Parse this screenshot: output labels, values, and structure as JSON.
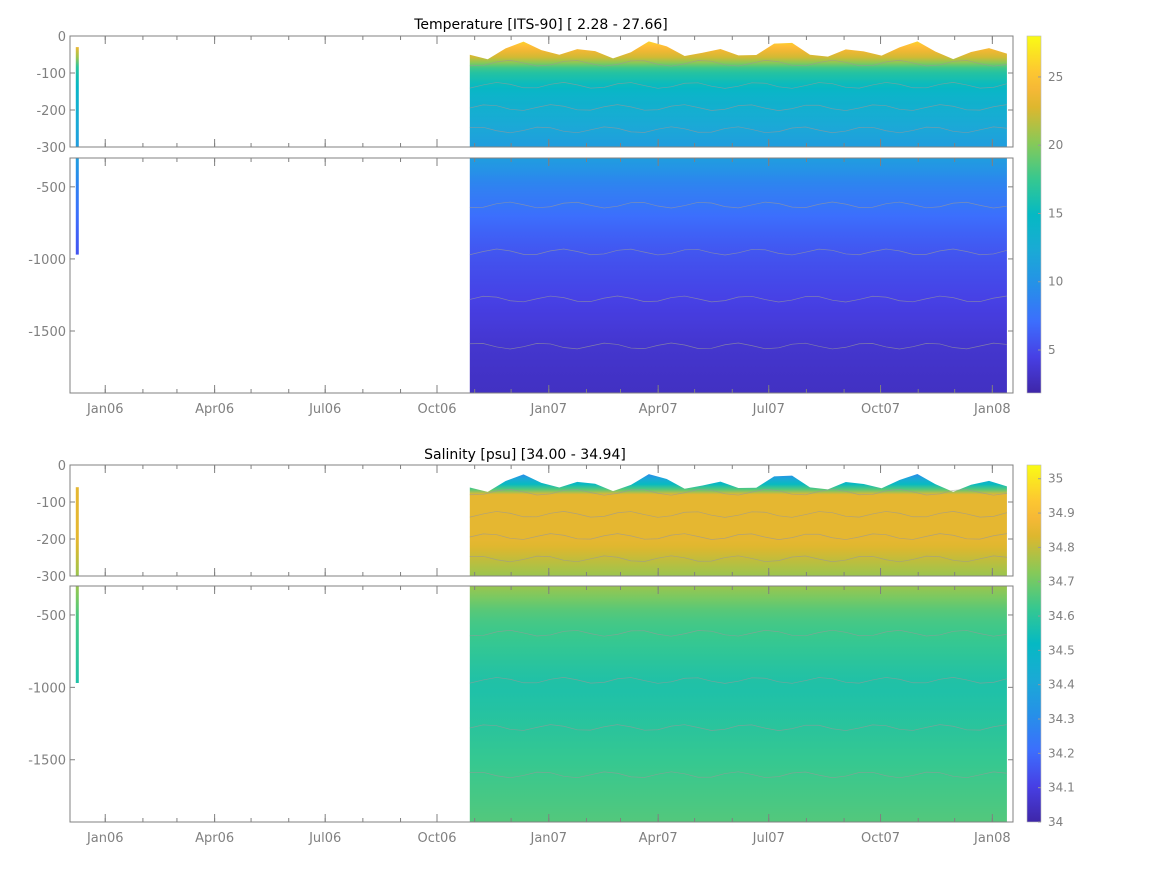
{
  "chart_data": [
    {
      "type": "heatmap",
      "title": "Temperature [ITS-90]   [ 2.28 - 27.66]",
      "xlabel": "",
      "ylabel": "",
      "x_range": [
        "2005-12-03",
        "2008-01-18"
      ],
      "x_ticks": [
        {
          "date": "2006-01-01",
          "label": "Jan06"
        },
        {
          "date": "2006-04-01",
          "label": "Apr06"
        },
        {
          "date": "2006-07-01",
          "label": "Jul06"
        },
        {
          "date": "2006-10-01",
          "label": "Oct06"
        },
        {
          "date": "2007-01-01",
          "label": "Jan07"
        },
        {
          "date": "2007-04-01",
          "label": "Apr07"
        },
        {
          "date": "2007-07-01",
          "label": "Jul07"
        },
        {
          "date": "2007-10-01",
          "label": "Oct07"
        },
        {
          "date": "2008-01-01",
          "label": "Jan08"
        }
      ],
      "upper_ylim": [
        -300,
        0
      ],
      "upper_yticks": [
        "0",
        "-100",
        "-200",
        "-300"
      ],
      "lower_ylim": [
        -1930,
        -300
      ],
      "lower_yticks": [
        "-500",
        "-1000",
        "-1500"
      ],
      "colorbar": {
        "clim": [
          1.85,
          28
        ],
        "ticks": [
          "5",
          "10",
          "15",
          "20",
          "25"
        ],
        "colormap": "parula"
      },
      "isolated_cast": {
        "date": "2005-12-09",
        "depth_range": [
          -30,
          -970
        ]
      },
      "section": {
        "date_range": [
          "2006-10-28",
          "2008-01-13"
        ],
        "surface_depth": -40
      },
      "profile": {
        "depth": [
          0,
          -50,
          -80,
          -150,
          -300,
          -500,
          -800,
          -1000,
          -1300,
          -1600,
          -1930
        ],
        "value": [
          26,
          22,
          17,
          14,
          11,
          8.5,
          6.5,
          5.5,
          4.5,
          3.5,
          3
        ]
      }
    },
    {
      "type": "heatmap",
      "title": "Salinity [psu]   [34.00 - 34.94]",
      "xlabel": "",
      "ylabel": "",
      "x_range": [
        "2005-12-03",
        "2008-01-18"
      ],
      "x_ticks": [
        {
          "date": "2006-01-01",
          "label": "Jan06"
        },
        {
          "date": "2006-04-01",
          "label": "Apr06"
        },
        {
          "date": "2006-07-01",
          "label": "Jul06"
        },
        {
          "date": "2006-10-01",
          "label": "Oct06"
        },
        {
          "date": "2007-01-01",
          "label": "Jan07"
        },
        {
          "date": "2007-04-01",
          "label": "Apr07"
        },
        {
          "date": "2007-07-01",
          "label": "Jul07"
        },
        {
          "date": "2007-10-01",
          "label": "Oct07"
        },
        {
          "date": "2008-01-01",
          "label": "Jan08"
        }
      ],
      "upper_ylim": [
        -300,
        0
      ],
      "upper_yticks": [
        "0",
        "-100",
        "-200",
        "-300"
      ],
      "lower_ylim": [
        -1930,
        -300
      ],
      "lower_yticks": [
        "-500",
        "-1000",
        "-1500"
      ],
      "colorbar": {
        "clim": [
          34,
          35.04
        ],
        "ticks": [
          "34",
          "34.1",
          "34.2",
          "34.3",
          "34.4",
          "34.5",
          "34.6",
          "34.7",
          "34.8",
          "34.9",
          "35"
        ],
        "colormap": "parula"
      },
      "isolated_cast": {
        "date": "2005-12-09",
        "depth_range": [
          -60,
          -970
        ]
      },
      "section": {
        "date_range": [
          "2006-10-28",
          "2008-01-13"
        ],
        "surface_depth": -50
      },
      "profile": {
        "depth": [
          0,
          -40,
          -60,
          -200,
          -300,
          -500,
          -1000,
          -1300,
          -1600,
          -1930
        ],
        "value": [
          34.3,
          34.6,
          34.85,
          34.85,
          34.75,
          34.65,
          34.57,
          34.6,
          34.63,
          34.66
        ]
      }
    }
  ]
}
